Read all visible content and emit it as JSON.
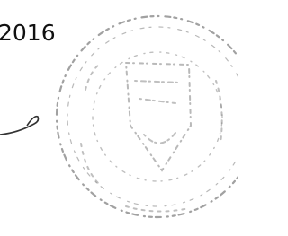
{
  "text": "2016"
}
